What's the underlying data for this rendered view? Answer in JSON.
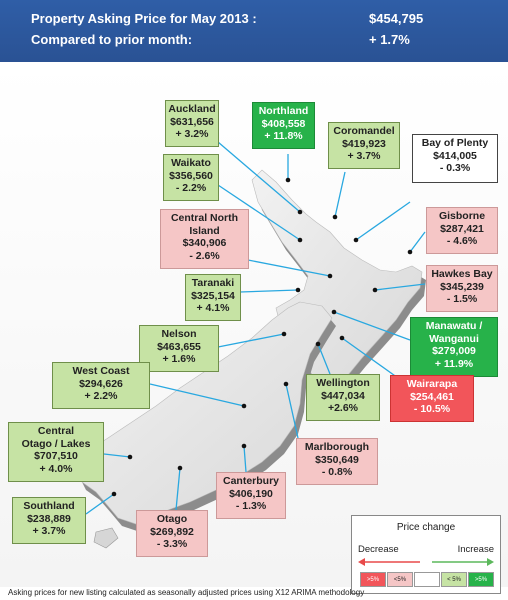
{
  "header": {
    "line1_label": "Property Asking Price for May 2013 :",
    "line1_value": "$454,795",
    "line2_label": "Compared to prior month:",
    "line2_value": "+ 1.7%"
  },
  "regions": {
    "auckland": {
      "name": "Auckland",
      "price": "$631,656",
      "change": "+ 3.2%"
    },
    "northland": {
      "name": "Northland",
      "price": "$408,558",
      "change": "+ 11.8%"
    },
    "coromandel": {
      "name": "Coromandel",
      "price": "$419,923",
      "change": "+ 3.7%"
    },
    "bay_of_plenty": {
      "name": "Bay of Plenty",
      "price": "$414,005",
      "change": "- 0.3%"
    },
    "waikato": {
      "name": "Waikato",
      "price": "$356,560",
      "change": "- 2.2%"
    },
    "central_north_island": {
      "name1": "Central North",
      "name2": "Island",
      "price": "$340,906",
      "change": "- 2.6%"
    },
    "gisborne": {
      "name": "Gisborne",
      "price": "$287,421",
      "change": "- 4.6%"
    },
    "taranaki": {
      "name": "Taranaki",
      "price": "$325,154",
      "change": "+ 4.1%"
    },
    "hawkes_bay": {
      "name": "Hawkes Bay",
      "price": "$345,239",
      "change": "- 1.5%"
    },
    "nelson": {
      "name": "Nelson",
      "price": "$463,655",
      "change": "+ 1.6%"
    },
    "manawatu": {
      "name1": "Manawatu  /",
      "name2": "Wanganui",
      "price": "$279,009",
      "change": "+ 11.9%"
    },
    "west_coast": {
      "name": "West Coast",
      "price": "$294,626",
      "change": "+ 2.2%"
    },
    "wellington": {
      "name": "Wellington",
      "price": "$447,034",
      "change": "+2.6%"
    },
    "wairarapa": {
      "name": "Wairarapa",
      "price": "$254,461",
      "change": "- 10.5%"
    },
    "central_otago": {
      "name1": "Central",
      "name2": "Otago / Lakes",
      "price": "$707,510",
      "change": "+ 4.0%"
    },
    "marlborough": {
      "name": "Marlborough",
      "price": "$350,649",
      "change": "- 0.8%"
    },
    "canterbury": {
      "name": "Canterbury",
      "price": "$406,190",
      "change": "- 1.3%"
    },
    "southland": {
      "name": "Southland",
      "price": "$238,889",
      "change": "+ 3.7%"
    },
    "otago": {
      "name": "Otago",
      "price": "$269,892",
      "change": "- 3.3%"
    }
  },
  "legend": {
    "title": "Price change",
    "decrease": "Decrease",
    "increase": "Increase",
    "swatches": [
      {
        "label": ">5%",
        "color": "#f2555a"
      },
      {
        "label": "<5%",
        "color": "#f5c6c6"
      },
      {
        "label": "",
        "color": "#ffffff"
      },
      {
        "label": "< 5%",
        "color": "#c6e3a4"
      },
      {
        "label": ">5%",
        "color": "#27b24a"
      }
    ],
    "decrease_color": "#e84a4a",
    "increase_color": "#5cb85c"
  },
  "footnote": "Asking prices for new listing calculated as seasonally adjusted prices using X12 ARIMA methodology"
}
